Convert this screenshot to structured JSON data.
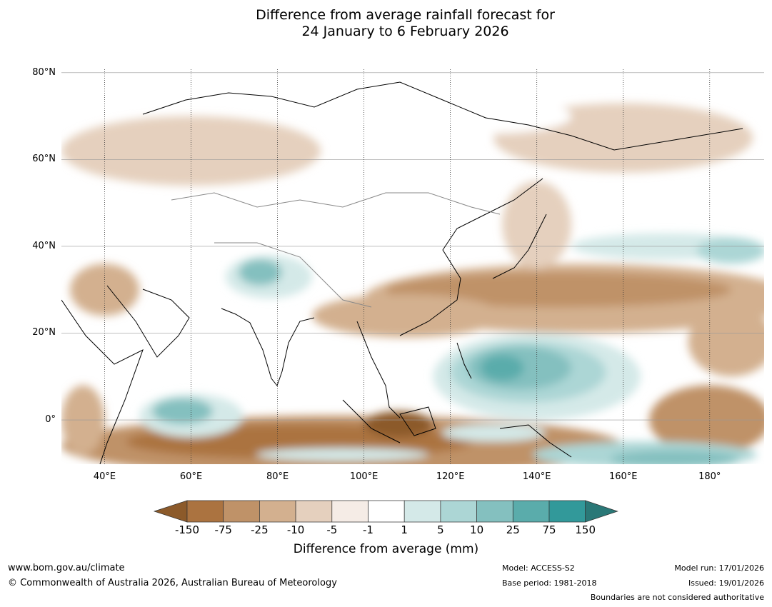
{
  "title_line1": "Difference from average rainfall forecast for",
  "title_line2": "24 January to 6 February 2026",
  "map": {
    "lon_range": [
      30,
      192.6
    ],
    "lat_range": [
      -10.2,
      80.8
    ],
    "lat_ticks": [
      {
        "value": 80,
        "label": "80°N"
      },
      {
        "value": 60,
        "label": "60°N"
      },
      {
        "value": 40,
        "label": "40°N"
      },
      {
        "value": 20,
        "label": "20°N"
      },
      {
        "value": 0,
        "label": "0°"
      }
    ],
    "lon_ticks": [
      {
        "value": 40,
        "label": "40°E"
      },
      {
        "value": 60,
        "label": "60°E"
      },
      {
        "value": 80,
        "label": "80°E"
      },
      {
        "value": 100,
        "label": "100°E"
      },
      {
        "value": 120,
        "label": "120°E"
      },
      {
        "value": 140,
        "label": "140°E"
      },
      {
        "value": 160,
        "label": "160°E"
      },
      {
        "value": 180,
        "label": "180°"
      }
    ],
    "anomaly_regions": [
      {
        "lon": 95,
        "lat": -6,
        "rlon": 65,
        "rlat": 7,
        "level": 2
      },
      {
        "lon": 85,
        "lat": -5,
        "rlon": 40,
        "rlat": 4,
        "level": 1
      },
      {
        "lon": 108,
        "lat": -1,
        "rlon": 8,
        "rlat": 3,
        "level": 0
      },
      {
        "lon": 150,
        "lat": 28,
        "rlon": 50,
        "rlat": 8,
        "level": 3
      },
      {
        "lon": 145,
        "lat": 30,
        "rlon": 40,
        "rlat": 4,
        "level": 2
      },
      {
        "lon": 110,
        "lat": 24,
        "rlon": 22,
        "rlat": 5,
        "level": 3
      },
      {
        "lon": 180,
        "lat": 0,
        "rlon": 14,
        "rlat": 8,
        "level": 2
      },
      {
        "lon": 185,
        "lat": 18,
        "rlon": 10,
        "rlat": 8,
        "level": 3
      },
      {
        "lon": 140,
        "lat": 45,
        "rlon": 8,
        "rlat": 10,
        "level": 4
      },
      {
        "lon": 60,
        "lat": 62,
        "rlon": 30,
        "rlat": 8,
        "level": 4
      },
      {
        "lon": 160,
        "lat": 65,
        "rlon": 30,
        "rlat": 8,
        "level": 4
      },
      {
        "lon": 40,
        "lat": 30,
        "rlon": 8,
        "rlat": 6,
        "level": 3
      },
      {
        "lon": 35,
        "lat": 0,
        "rlon": 5,
        "rlat": 8,
        "level": 3
      },
      {
        "lon": 140,
        "lat": 10,
        "rlon": 24,
        "rlat": 10,
        "level": 7
      },
      {
        "lon": 138,
        "lat": 11,
        "rlon": 18,
        "rlat": 7,
        "level": 8
      },
      {
        "lon": 136,
        "lat": 12,
        "rlon": 12,
        "rlat": 5,
        "level": 9
      },
      {
        "lon": 132,
        "lat": 12,
        "rlon": 5,
        "rlat": 3,
        "level": 10
      },
      {
        "lon": 60,
        "lat": 1,
        "rlon": 12,
        "rlat": 5,
        "level": 7
      },
      {
        "lon": 58,
        "lat": 2,
        "rlon": 7,
        "rlat": 3,
        "level": 9
      },
      {
        "lon": 78,
        "lat": 33,
        "rlon": 10,
        "rlat": 5,
        "level": 7
      },
      {
        "lon": 76,
        "lat": 34,
        "rlon": 5,
        "rlat": 3,
        "level": 9
      },
      {
        "lon": 170,
        "lat": 40,
        "rlon": 22,
        "rlat": 3,
        "level": 7
      },
      {
        "lon": 185,
        "lat": 39,
        "rlon": 8,
        "rlat": 3,
        "level": 8
      },
      {
        "lon": 165,
        "lat": -8,
        "rlon": 26,
        "rlat": 3,
        "level": 8
      },
      {
        "lon": 172,
        "lat": -9,
        "rlon": 15,
        "rlat": 2,
        "level": 9
      },
      {
        "lon": 130,
        "lat": -3,
        "rlon": 12,
        "rlat": 2,
        "level": 7
      },
      {
        "lon": 95,
        "lat": -8,
        "rlon": 20,
        "rlat": 1.5,
        "level": 7
      },
      {
        "lon": 130,
        "lat": 70,
        "rlon": 18,
        "rlat": 4,
        "level": 6
      },
      {
        "lon": 70,
        "lat": 45,
        "rlon": 15,
        "rlat": 6,
        "level": 6
      }
    ]
  },
  "colorbar": {
    "colors": [
      "#8c5a2a",
      "#ab7340",
      "#bf9268",
      "#d3b08f",
      "#e5d0be",
      "#f5ece6",
      "#ffffff",
      "#d4e9e8",
      "#acd6d5",
      "#84c0bf",
      "#5aacab",
      "#32999a",
      "#2a7877"
    ],
    "labels": [
      "-150",
      "-75",
      "-25",
      "-10",
      "-5",
      "-1",
      "1",
      "5",
      "10",
      "25",
      "75",
      "150"
    ],
    "title": "Difference from average (mm)"
  },
  "footer": {
    "website": "www.bom.gov.au/climate",
    "copyright": "© Commonwealth of Australia 2026, Australian Bureau of Meteorology",
    "model": "Model: ACCESS-S2",
    "base_period": "Base period: 1981-2018",
    "model_run": "Model run: 17/01/2026",
    "issued": "Issued: 19/01/2026",
    "disclaimer": "Boundaries are not considered authoritative"
  }
}
